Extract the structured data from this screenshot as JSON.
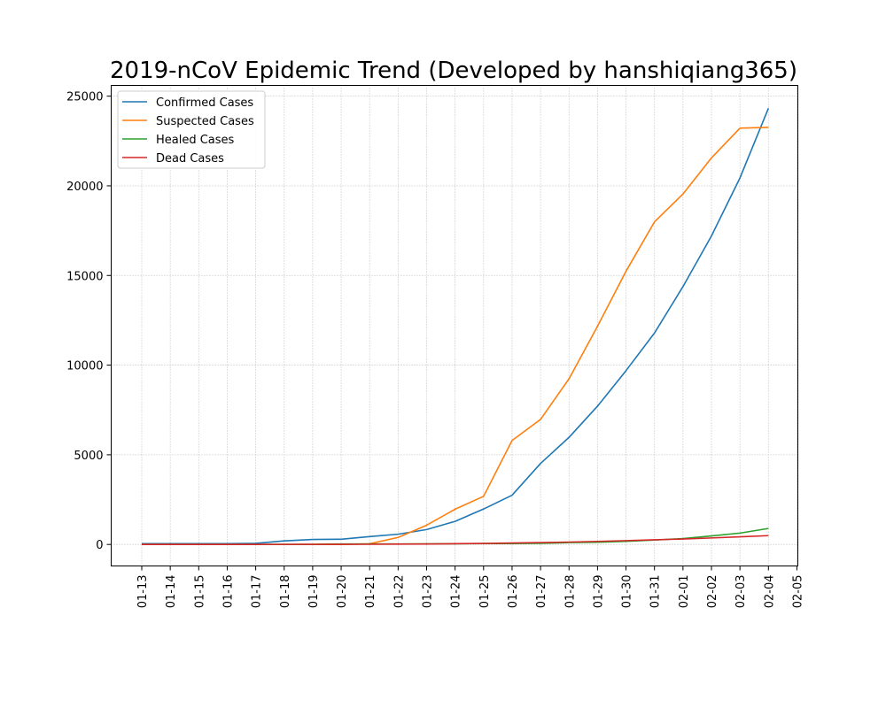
{
  "chart_data": {
    "type": "line",
    "title": "2019-nCoV Epidemic Trend (Developed by hanshiqiang365)",
    "xlabel": "",
    "ylabel": "",
    "x": [
      "01-13",
      "01-14",
      "01-15",
      "01-16",
      "01-17",
      "01-18",
      "01-19",
      "01-20",
      "01-21",
      "01-22",
      "01-23",
      "01-24",
      "01-25",
      "01-26",
      "01-27",
      "01-28",
      "01-29",
      "01-30",
      "01-31",
      "02-01",
      "02-02",
      "02-03",
      "02-04"
    ],
    "x_ticks": [
      "01-13",
      "01-14",
      "01-15",
      "01-16",
      "01-17",
      "01-18",
      "01-19",
      "01-20",
      "01-21",
      "01-22",
      "01-23",
      "01-24",
      "01-25",
      "01-26",
      "01-27",
      "01-28",
      "01-29",
      "01-30",
      "01-31",
      "02-01",
      "02-02",
      "02-03",
      "02-04",
      "02-05"
    ],
    "y_ticks": [
      0,
      5000,
      10000,
      15000,
      20000,
      25000
    ],
    "ylim": [
      -1200,
      25600
    ],
    "grid": true,
    "legend_position": "top-left",
    "series": [
      {
        "name": "Confirmed Cases",
        "color": "#1f77b4",
        "values": [
          41,
          41,
          41,
          45,
          62,
          198,
          275,
          291,
          440,
          571,
          830,
          1287,
          1975,
          2744,
          4515,
          5974,
          7711,
          9692,
          11791,
          14380,
          17205,
          20438,
          24324
        ]
      },
      {
        "name": "Suspected Cases",
        "color": "#ff7f0e",
        "values": [
          0,
          0,
          0,
          0,
          0,
          0,
          0,
          0,
          37,
          393,
          1072,
          1965,
          2684,
          5794,
          6973,
          9239,
          12167,
          15238,
          17988,
          19544,
          21558,
          23214,
          23260
        ]
      },
      {
        "name": "Healed Cases",
        "color": "#2ca02c",
        "values": [
          0,
          0,
          0,
          0,
          0,
          0,
          0,
          25,
          28,
          28,
          34,
          38,
          49,
          51,
          60,
          103,
          124,
          171,
          243,
          328,
          475,
          632,
          892
        ]
      },
      {
        "name": "Dead Cases",
        "color": "#d62728",
        "values": [
          1,
          1,
          1,
          1,
          2,
          3,
          4,
          6,
          9,
          17,
          25,
          41,
          56,
          80,
          106,
          132,
          170,
          213,
          259,
          304,
          361,
          425,
          490
        ]
      }
    ]
  }
}
